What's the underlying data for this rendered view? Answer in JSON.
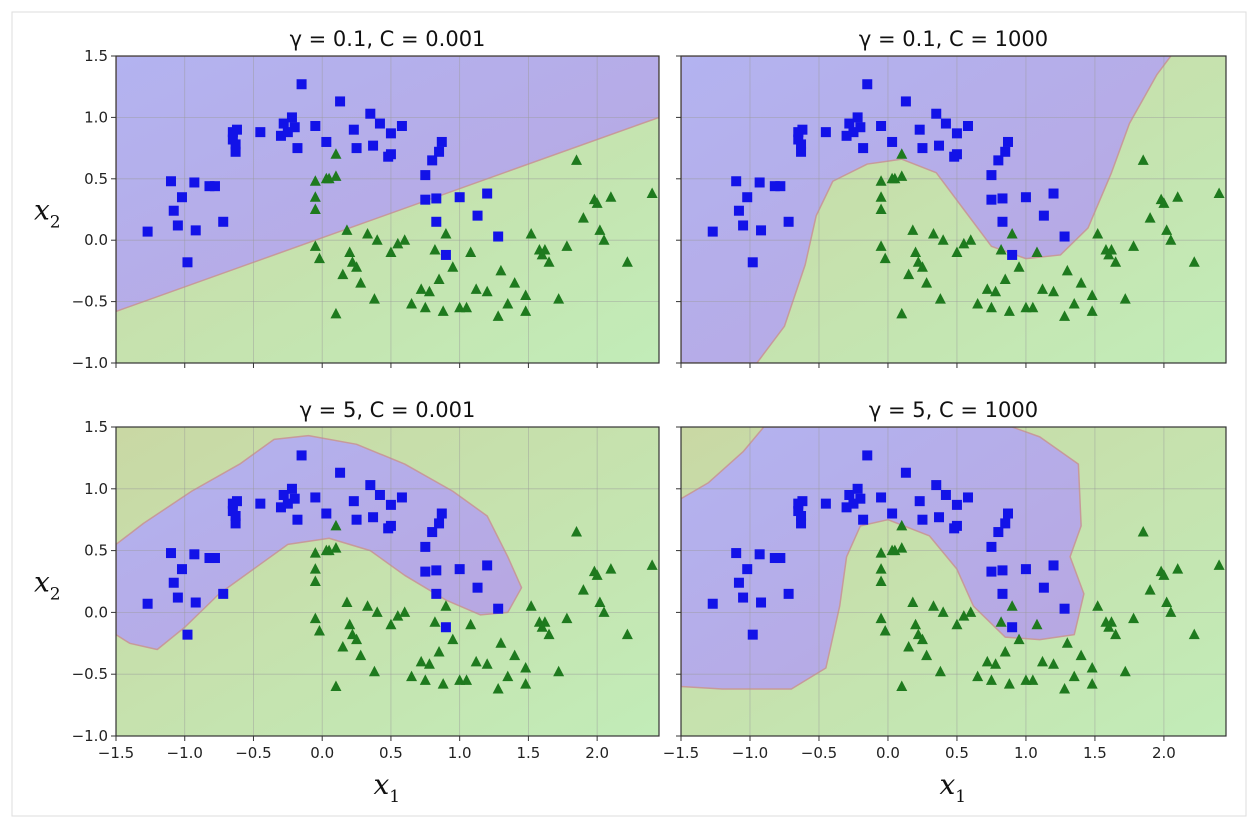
{
  "chart_data": [
    {
      "type": "scatter",
      "title": "γ = 0.1, C = 0.001",
      "gamma": "0.1",
      "C": "0.001",
      "xlim": [
        -1.5,
        2.45
      ],
      "ylim": [
        -1.0,
        1.5
      ],
      "xticks": [
        "−1.5",
        "−1.0",
        "−0.5",
        "0.0",
        "0.5",
        "1.0",
        "1.5",
        "2.0"
      ],
      "yticks": [
        "−1.0",
        "−0.5",
        "0.0",
        "0.5",
        "1.0",
        "1.5"
      ],
      "xlabel": "",
      "ylabel": "x2",
      "region_boundary": "linear",
      "boundary_points": [
        [
          -1.5,
          -0.58
        ],
        [
          2.45,
          1.0
        ]
      ]
    },
    {
      "type": "scatter",
      "title": "γ = 0.1, C = 1000",
      "gamma": "0.1",
      "C": "1000",
      "xlim": [
        -1.5,
        2.45
      ],
      "ylim": [
        -1.0,
        1.5
      ],
      "xticks": [
        "−1.5",
        "−1.0",
        "−0.5",
        "0.0",
        "0.5",
        "1.0",
        "1.5",
        "2.0"
      ],
      "yticks": [
        "−1.0",
        "−0.5",
        "0.0",
        "0.5",
        "1.0",
        "1.5"
      ],
      "xlabel": "",
      "ylabel": "",
      "region_boundary": "curve",
      "boundary_points": [
        [
          -0.95,
          -1.0
        ],
        [
          -0.75,
          -0.7
        ],
        [
          -0.6,
          -0.2
        ],
        [
          -0.52,
          0.2
        ],
        [
          -0.4,
          0.48
        ],
        [
          -0.15,
          0.62
        ],
        [
          0.1,
          0.66
        ],
        [
          0.35,
          0.55
        ],
        [
          0.55,
          0.25
        ],
        [
          0.75,
          -0.05
        ],
        [
          1.0,
          -0.15
        ],
        [
          1.25,
          -0.12
        ],
        [
          1.45,
          0.1
        ],
        [
          1.62,
          0.55
        ],
        [
          1.75,
          0.95
        ],
        [
          1.95,
          1.35
        ],
        [
          2.05,
          1.5
        ]
      ]
    },
    {
      "type": "scatter",
      "title": "γ = 5, C = 0.001",
      "gamma": "5",
      "C": "0.001",
      "xlim": [
        -1.5,
        2.45
      ],
      "ylim": [
        -1.0,
        1.5
      ],
      "xticks": [
        "−1.5",
        "−1.0",
        "−0.5",
        "0.0",
        "0.5",
        "1.0",
        "1.5",
        "2.0"
      ],
      "yticks": [
        "−1.0",
        "−0.5",
        "0.0",
        "0.5",
        "1.0",
        "1.5"
      ],
      "xlabel": "x1",
      "ylabel": "x2",
      "region_boundary": "closed",
      "region_points": [
        [
          -1.5,
          0.55
        ],
        [
          -1.3,
          0.72
        ],
        [
          -0.95,
          0.98
        ],
        [
          -0.6,
          1.2
        ],
        [
          -0.35,
          1.4
        ],
        [
          -0.1,
          1.43
        ],
        [
          0.25,
          1.36
        ],
        [
          0.6,
          1.2
        ],
        [
          0.95,
          0.98
        ],
        [
          1.2,
          0.78
        ],
        [
          1.35,
          0.45
        ],
        [
          1.45,
          0.2
        ],
        [
          1.35,
          0.0
        ],
        [
          1.15,
          -0.02
        ],
        [
          0.9,
          0.1
        ],
        [
          0.6,
          0.3
        ],
        [
          0.35,
          0.5
        ],
        [
          0.05,
          0.6
        ],
        [
          -0.25,
          0.55
        ],
        [
          -0.5,
          0.35
        ],
        [
          -0.75,
          0.15
        ],
        [
          -1.0,
          -0.12
        ],
        [
          -1.2,
          -0.3
        ],
        [
          -1.4,
          -0.25
        ],
        [
          -1.5,
          -0.18
        ]
      ]
    },
    {
      "type": "scatter",
      "title": "γ = 5, C = 1000",
      "gamma": "5",
      "C": "1000",
      "xlim": [
        -1.5,
        2.45
      ],
      "ylim": [
        -1.0,
        1.5
      ],
      "xticks": [
        "−1.5",
        "−1.0",
        "−0.5",
        "0.0",
        "0.5",
        "1.0",
        "1.5",
        "2.0"
      ],
      "yticks": [
        "−1.0",
        "−0.5",
        "0.0",
        "0.5",
        "1.0",
        "1.5"
      ],
      "xlabel": "x1",
      "ylabel": "",
      "region_boundary": "closed",
      "region_points": [
        [
          -1.5,
          0.92
        ],
        [
          -1.3,
          1.05
        ],
        [
          -1.05,
          1.3
        ],
        [
          -0.9,
          1.5
        ],
        [
          0.9,
          1.5
        ],
        [
          1.1,
          1.42
        ],
        [
          1.38,
          1.2
        ],
        [
          1.4,
          0.7
        ],
        [
          1.32,
          0.45
        ],
        [
          1.42,
          0.15
        ],
        [
          1.35,
          -0.18
        ],
        [
          1.1,
          -0.22
        ],
        [
          0.85,
          -0.2
        ],
        [
          0.62,
          0.05
        ],
        [
          0.5,
          0.35
        ],
        [
          0.3,
          0.62
        ],
        [
          0.0,
          0.75
        ],
        [
          -0.2,
          0.7
        ],
        [
          -0.3,
          0.45
        ],
        [
          -0.35,
          0.05
        ],
        [
          -0.45,
          -0.45
        ],
        [
          -0.7,
          -0.62
        ],
        [
          -1.2,
          -0.62
        ],
        [
          -1.5,
          -0.6
        ]
      ]
    }
  ],
  "class_blue_squares": [
    [
      -1.27,
      0.07
    ],
    [
      -1.1,
      0.48
    ],
    [
      -1.08,
      0.24
    ],
    [
      -1.05,
      0.12
    ],
    [
      -1.02,
      0.35
    ],
    [
      -0.98,
      -0.18
    ],
    [
      -0.93,
      0.47
    ],
    [
      -0.92,
      0.08
    ],
    [
      -0.82,
      0.44
    ],
    [
      -0.78,
      0.44
    ],
    [
      -0.72,
      0.15
    ],
    [
      -0.65,
      0.82
    ],
    [
      -0.65,
      0.88
    ],
    [
      -0.63,
      0.72
    ],
    [
      -0.63,
      0.78
    ],
    [
      -0.62,
      0.9
    ],
    [
      -0.45,
      0.88
    ],
    [
      -0.3,
      0.85
    ],
    [
      -0.28,
      0.95
    ],
    [
      -0.25,
      0.88
    ],
    [
      -0.22,
      1.0
    ],
    [
      -0.2,
      0.92
    ],
    [
      -0.18,
      0.75
    ],
    [
      -0.15,
      1.27
    ],
    [
      -0.05,
      0.93
    ],
    [
      0.03,
      0.8
    ],
    [
      0.13,
      1.13
    ],
    [
      0.23,
      0.9
    ],
    [
      0.25,
      0.75
    ],
    [
      0.35,
      1.03
    ],
    [
      0.37,
      0.77
    ],
    [
      0.42,
      0.95
    ],
    [
      0.48,
      0.68
    ],
    [
      0.5,
      0.87
    ],
    [
      0.5,
      0.7
    ],
    [
      0.58,
      0.93
    ],
    [
      0.75,
      0.53
    ],
    [
      0.75,
      0.33
    ],
    [
      0.8,
      0.65
    ],
    [
      0.83,
      0.34
    ],
    [
      0.83,
      0.15
    ],
    [
      0.85,
      0.72
    ],
    [
      0.87,
      0.8
    ],
    [
      0.9,
      -0.12
    ],
    [
      1.0,
      0.35
    ],
    [
      1.13,
      0.2
    ],
    [
      1.2,
      0.38
    ],
    [
      1.28,
      0.03
    ]
  ],
  "class_green_triangles": [
    [
      -0.05,
      0.48
    ],
    [
      0.03,
      0.5
    ],
    [
      0.05,
      0.5
    ],
    [
      0.1,
      0.52
    ],
    [
      -0.05,
      0.35
    ],
    [
      -0.05,
      0.25
    ],
    [
      -0.05,
      -0.05
    ],
    [
      -0.02,
      -0.15
    ],
    [
      0.1,
      0.7
    ],
    [
      0.18,
      0.08
    ],
    [
      0.2,
      -0.1
    ],
    [
      0.22,
      -0.18
    ],
    [
      0.28,
      -0.35
    ],
    [
      0.33,
      0.05
    ],
    [
      0.38,
      -0.48
    ],
    [
      0.1,
      -0.6
    ],
    [
      0.5,
      -0.1
    ],
    [
      0.55,
      -0.03
    ],
    [
      0.6,
      0.0
    ],
    [
      0.72,
      -0.4
    ],
    [
      0.75,
      -0.55
    ],
    [
      0.78,
      -0.42
    ],
    [
      0.82,
      -0.08
    ],
    [
      0.85,
      -0.32
    ],
    [
      0.9,
      0.05
    ],
    [
      0.95,
      -0.22
    ],
    [
      1.0,
      -0.55
    ],
    [
      1.05,
      -0.55
    ],
    [
      1.08,
      -0.1
    ],
    [
      1.12,
      -0.4
    ],
    [
      1.2,
      -0.42
    ],
    [
      1.28,
      -0.62
    ],
    [
      1.3,
      -0.25
    ],
    [
      1.35,
      -0.52
    ],
    [
      1.4,
      -0.35
    ],
    [
      1.48,
      -0.45
    ],
    [
      1.52,
      0.05
    ],
    [
      1.58,
      -0.08
    ],
    [
      1.6,
      -0.12
    ],
    [
      1.62,
      -0.08
    ],
    [
      1.65,
      -0.18
    ],
    [
      1.72,
      -0.48
    ],
    [
      1.78,
      -0.05
    ],
    [
      1.85,
      0.65
    ],
    [
      1.9,
      0.18
    ],
    [
      1.98,
      0.33
    ],
    [
      2.0,
      0.3
    ],
    [
      2.02,
      0.08
    ],
    [
      2.05,
      0.0
    ],
    [
      2.1,
      0.35
    ],
    [
      2.22,
      -0.18
    ],
    [
      2.4,
      0.38
    ],
    [
      0.25,
      -0.22
    ],
    [
      0.4,
      0.0
    ],
    [
      0.15,
      -0.28
    ],
    [
      0.65,
      -0.52
    ],
    [
      1.48,
      -0.58
    ],
    [
      0.88,
      -0.58
    ]
  ],
  "colors": {
    "blue_marker": "#1212e8",
    "green_marker": "#1e7a1e",
    "blue_region": "#b8a6e0",
    "green_region": "#c9d8a4",
    "blue_region_tint": "#b3b3f0",
    "green_region_tint": "#c2ecb8",
    "boundary": "#c79a9a"
  }
}
